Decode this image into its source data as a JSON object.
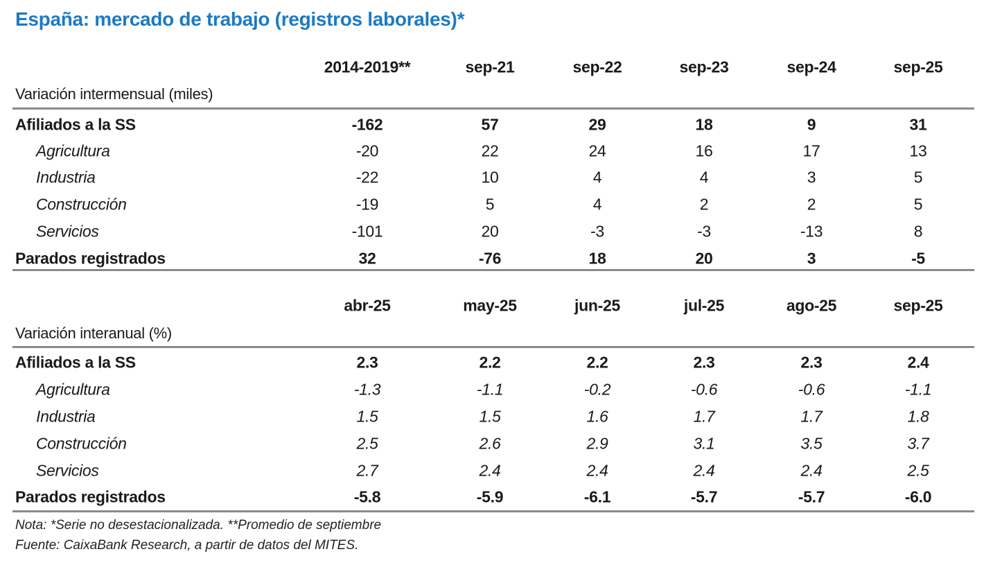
{
  "title": "España: mercado de trabajo (registros laborales)*",
  "sections": [
    {
      "columns": [
        "2014-2019**",
        "sep-21",
        "sep-22",
        "sep-23",
        "sep-24",
        "sep-25"
      ],
      "subtitle": "Variación intermensual (miles)",
      "rows": [
        {
          "label": "Afiliados a la SS",
          "type": "main",
          "values": [
            "-162",
            "57",
            "29",
            "18",
            "9",
            "31"
          ]
        },
        {
          "label": "Agricultura",
          "type": "sub",
          "values": [
            "-20",
            "22",
            "24",
            "16",
            "17",
            "13"
          ]
        },
        {
          "label": "Industria",
          "type": "sub",
          "values": [
            "-22",
            "10",
            "4",
            "4",
            "3",
            "5"
          ]
        },
        {
          "label": "Construcción",
          "type": "sub",
          "values": [
            "-19",
            "5",
            "4",
            "2",
            "2",
            "5"
          ]
        },
        {
          "label": "Servicios",
          "type": "sub",
          "values": [
            "-101",
            "20",
            "-3",
            "-3",
            "-13",
            "8"
          ]
        },
        {
          "label": "Parados registrados",
          "type": "main",
          "values": [
            "32",
            "-76",
            "18",
            "20",
            "3",
            "-5"
          ]
        }
      ]
    },
    {
      "columns": [
        "abr-25",
        "may-25",
        "jun-25",
        "jul-25",
        "ago-25",
        "sep-25"
      ],
      "subtitle": "Variación interanual (%)",
      "rows": [
        {
          "label": "Afiliados a la SS",
          "type": "main",
          "values": [
            "2.3",
            "2.2",
            "2.2",
            "2.3",
            "2.3",
            "2.4"
          ]
        },
        {
          "label": "Agricultura",
          "type": "sub",
          "values": [
            "-1.3",
            "-1.1",
            "-0.2",
            "-0.6",
            "-0.6",
            "-1.1"
          ]
        },
        {
          "label": "Industria",
          "type": "sub",
          "values": [
            "1.5",
            "1.5",
            "1.6",
            "1.7",
            "1.7",
            "1.8"
          ]
        },
        {
          "label": "Construcción",
          "type": "sub",
          "values": [
            "2.5",
            "2.6",
            "2.9",
            "3.1",
            "3.5",
            "3.7"
          ]
        },
        {
          "label": "Servicios",
          "type": "sub",
          "values": [
            "2.7",
            "2.4",
            "2.4",
            "2.4",
            "2.4",
            "2.5"
          ]
        },
        {
          "label": "Parados registrados",
          "type": "main",
          "values": [
            "-5.8",
            "-5.9",
            "-6.1",
            "-5.7",
            "-5.7",
            "-6.0"
          ]
        }
      ]
    }
  ],
  "notes": [
    "Nota: *Serie no desestacionalizada. **Promedio de septiembre",
    "Fuente: CaixaBank Research, a partir de datos del MITES."
  ],
  "colors": {
    "title": "#1b7ac4",
    "rule": "#8a8a8a"
  }
}
